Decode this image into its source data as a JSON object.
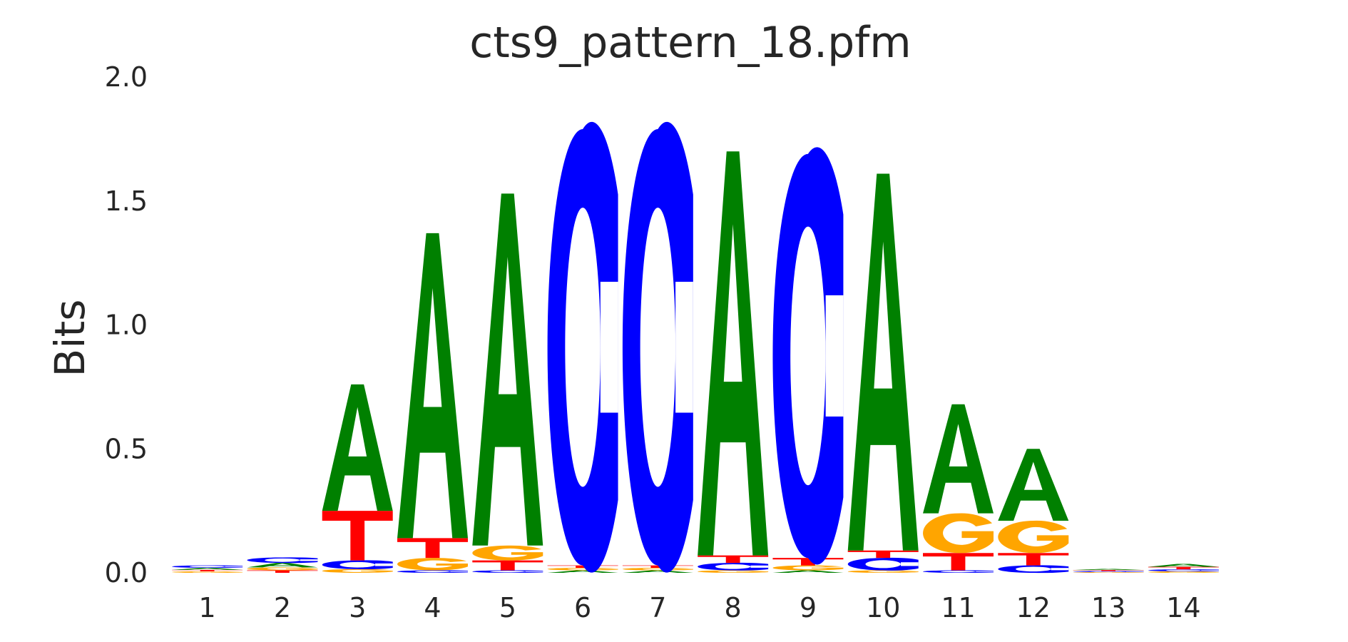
{
  "chart_data": {
    "type": "sequence_logo",
    "title": "cts9_pattern_18.pfm",
    "ylabel": "Bits",
    "xlabel": "",
    "ylim": [
      0,
      2.0
    ],
    "yticks": [
      "0.0",
      "0.5",
      "1.0",
      "1.5",
      "2.0"
    ],
    "grid": false,
    "colors": {
      "A": "#008000",
      "C": "#0000ff",
      "G": "#ffa500",
      "T": "#ff0000"
    },
    "positions": [
      {
        "label": "1",
        "stack": [
          [
            "G",
            0.006
          ],
          [
            "T",
            0.006
          ],
          [
            "A",
            0.008
          ],
          [
            "C",
            0.01
          ]
        ]
      },
      {
        "label": "2",
        "stack": [
          [
            "T",
            0.01
          ],
          [
            "G",
            0.012
          ],
          [
            "A",
            0.018
          ],
          [
            "C",
            0.022
          ]
        ]
      },
      {
        "label": "3",
        "stack": [
          [
            "G",
            0.015
          ],
          [
            "C",
            0.035
          ],
          [
            "T",
            0.2
          ],
          [
            "A",
            0.51
          ]
        ]
      },
      {
        "label": "4",
        "stack": [
          [
            "C",
            0.01
          ],
          [
            "G",
            0.05
          ],
          [
            "T",
            0.08
          ],
          [
            "A",
            1.23
          ]
        ]
      },
      {
        "label": "5",
        "stack": [
          [
            "C",
            0.01
          ],
          [
            "T",
            0.04
          ],
          [
            "G",
            0.06
          ],
          [
            "A",
            1.42
          ]
        ]
      },
      {
        "label": "6",
        "stack": [
          [
            "A",
            0.01
          ],
          [
            "G",
            0.01
          ],
          [
            "T",
            0.01
          ],
          [
            "C",
            1.76
          ]
        ]
      },
      {
        "label": "7",
        "stack": [
          [
            "A",
            0.01
          ],
          [
            "G",
            0.01
          ],
          [
            "T",
            0.01
          ],
          [
            "C",
            1.76
          ]
        ]
      },
      {
        "label": "8",
        "stack": [
          [
            "G",
            0.01
          ],
          [
            "C",
            0.03
          ],
          [
            "T",
            0.03
          ],
          [
            "A",
            1.63
          ]
        ]
      },
      {
        "label": "9",
        "stack": [
          [
            "A",
            0.01
          ],
          [
            "G",
            0.02
          ],
          [
            "T",
            0.03
          ],
          [
            "C",
            1.63
          ]
        ]
      },
      {
        "label": "10",
        "stack": [
          [
            "G",
            0.01
          ],
          [
            "C",
            0.05
          ],
          [
            "T",
            0.03
          ],
          [
            "A",
            1.52
          ]
        ]
      },
      {
        "label": "11",
        "stack": [
          [
            "C",
            0.01
          ],
          [
            "T",
            0.07
          ],
          [
            "G",
            0.16
          ],
          [
            "A",
            0.44
          ]
        ]
      },
      {
        "label": "12",
        "stack": [
          [
            "C",
            0.03
          ],
          [
            "T",
            0.05
          ],
          [
            "G",
            0.13
          ],
          [
            "A",
            0.29
          ]
        ]
      },
      {
        "label": "13",
        "stack": [
          [
            "G",
            0.003
          ],
          [
            "C",
            0.004
          ],
          [
            "T",
            0.004
          ],
          [
            "A",
            0.005
          ]
        ]
      },
      {
        "label": "14",
        "stack": [
          [
            "G",
            0.006
          ],
          [
            "C",
            0.008
          ],
          [
            "T",
            0.01
          ],
          [
            "A",
            0.012
          ]
        ]
      }
    ]
  }
}
